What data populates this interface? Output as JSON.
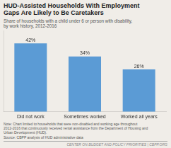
{
  "chart_data": {
    "type": "bar",
    "title": "HUD-Assisted Households With Employment\nGaps Are Likely to Be Caretakers",
    "subtitle": "Share of households with a child under 6 or person with disability,\nby work history, 2012-2016",
    "categories": [
      "Did not work",
      "Sometimes worked",
      "Worked all years"
    ],
    "values": [
      42,
      34,
      26
    ],
    "value_labels": [
      "42%",
      "34%",
      "26%"
    ],
    "color": "#5b9bd5",
    "ylim": [
      0,
      50
    ],
    "grid": false,
    "data_labels": true,
    "tick_labels": "x",
    "note": "Note: Chart limited to households that were non-disabled and working age throughout\n2012-2016 that continuously received rental assistance from the Department of Housing and\nUrban Development (HUD).",
    "source": "Source: CBPP analysis of HUD administrative data",
    "footer": "CENTER ON BUDGET AND POLICY PRIORITIES | CBPP.ORG"
  }
}
